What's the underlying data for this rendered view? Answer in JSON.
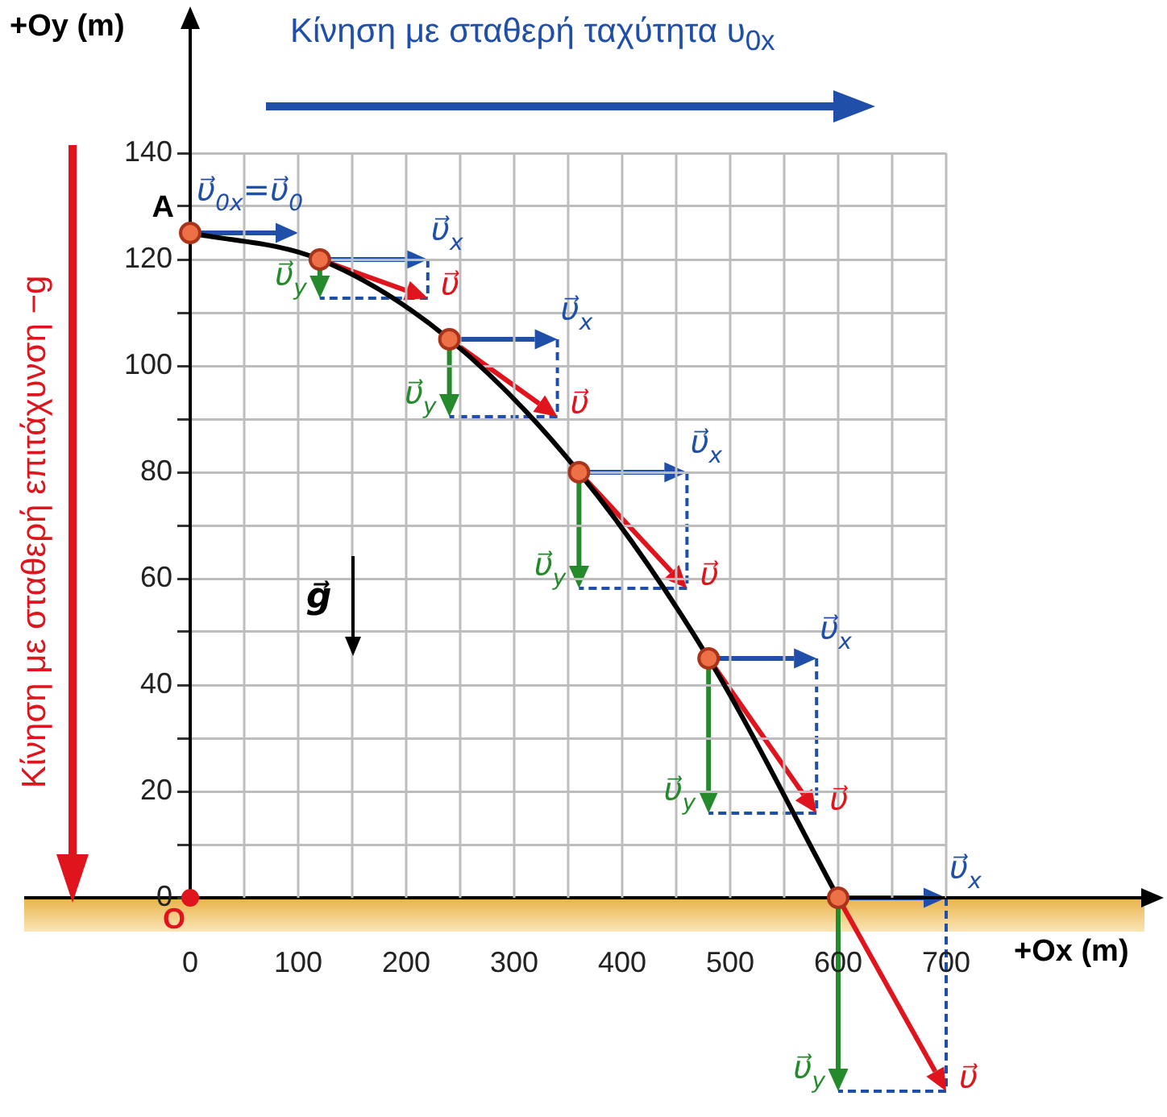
{
  "chart_data": {
    "type": "line",
    "title": "Κίνηση με σταθερή ταχύτητα υ$_{0x}$",
    "xlabel": "+Ox (m)",
    "ylabel": "+Oy (m)",
    "xlim": [
      0,
      700
    ],
    "ylim": [
      0,
      140
    ],
    "xticks": [
      0,
      {
        "value": 50,
        "label": null
      },
      100,
      {
        "value": 150,
        "label": null
      },
      200,
      {
        "value": 250,
        "label": null
      },
      300,
      {
        "value": 350,
        "label": null
      },
      400,
      {
        "value": 450,
        "label": null
      },
      500,
      {
        "value": 550,
        "label": null
      },
      600,
      {
        "value": 650,
        "label": null
      },
      700
    ],
    "yticks": [
      0,
      {
        "value": 10,
        "label": null
      },
      20,
      {
        "value": 30,
        "label": null
      },
      40,
      {
        "value": 50,
        "label": null
      },
      60,
      {
        "value": 70,
        "label": null
      },
      80,
      {
        "value": 90,
        "label": null
      },
      100,
      {
        "value": 110,
        "label": null
      },
      120,
      {
        "value": 130,
        "label": null
      },
      140
    ],
    "grid": true,
    "annotations": [
      "Κίνηση με σταθερή επιτάχυνση −g",
      "g⃗",
      {
        "text": "A",
        "x": 0,
        "y": 125
      },
      {
        "text": "O",
        "x": 0,
        "y": 0
      },
      {
        "text": "υ⃗$_{0x}$=υ⃗$_{0}$",
        "x": 0,
        "y": 125
      },
      {
        "text": "υ⃗$_{x}$",
        "x": 120,
        "y": 120
      },
      {
        "text": "υ⃗$_{y}$",
        "x": 120,
        "y": 120
      },
      {
        "text": "υ⃗",
        "x": 120,
        "y": 120
      },
      {
        "text": "υ⃗$_{x}$",
        "x": 240,
        "y": 105
      },
      {
        "text": "υ⃗$_{y}$",
        "x": 240,
        "y": 105
      },
      {
        "text": "υ⃗",
        "x": 240,
        "y": 105
      },
      {
        "text": "υ⃗$_{x}$",
        "x": 360,
        "y": 80
      },
      {
        "text": "υ⃗$_{y}$",
        "x": 360,
        "y": 80
      },
      {
        "text": "υ⃗",
        "x": 360,
        "y": 80
      },
      {
        "text": "υ⃗$_{x}$",
        "x": 480,
        "y": 45
      },
      {
        "text": "υ⃗$_{y}$",
        "x": 480,
        "y": 45
      },
      {
        "text": "υ⃗",
        "x": 480,
        "y": 45
      },
      {
        "text": "υ⃗$_{x}$",
        "x": 600,
        "y": 0
      },
      {
        "text": "υ⃗$_{y}$",
        "x": 600,
        "y": 0
      },
      {
        "text": "υ⃗",
        "x": 600,
        "y": 0
      }
    ],
    "series": [
      {
        "color": "#000000",
        "marker": "circle",
        "x": [
          0,
          120,
          240,
          360,
          480,
          600
        ],
        "values": [
          125,
          120,
          105,
          80,
          45,
          0
        ]
      },
      {
        "type": "scatter",
        "color": "#e0141c",
        "x": [
          0
        ],
        "values": [
          0
        ]
      }
    ]
  }
}
